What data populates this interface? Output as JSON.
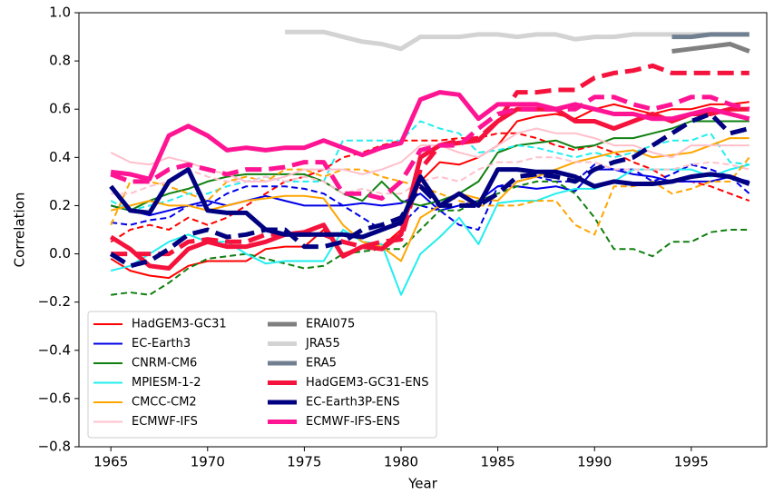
{
  "chart_data": {
    "type": "line",
    "xlabel": "Year",
    "ylabel": "Correlation",
    "x": [
      1965,
      1966,
      1967,
      1968,
      1969,
      1970,
      1971,
      1972,
      1973,
      1974,
      1975,
      1976,
      1977,
      1978,
      1979,
      1980,
      1981,
      1982,
      1983,
      1984,
      1985,
      1986,
      1987,
      1988,
      1989,
      1990,
      1991,
      1992,
      1993,
      1994,
      1995,
      1996,
      1997,
      1998
    ],
    "xlim": [
      1963.35,
      1998.9
    ],
    "xticks": [
      1965,
      1970,
      1975,
      1980,
      1985,
      1990,
      1995
    ],
    "ylim": [
      -0.8,
      1.0
    ],
    "yticks": [
      {
        "value": -0.8,
        "label": "−0.8"
      },
      {
        "value": -0.6,
        "label": "−0.6"
      },
      {
        "value": -0.4,
        "label": "−0.4"
      },
      {
        "value": -0.2,
        "label": "−0.2"
      },
      {
        "value": 0,
        "label": "0.0"
      },
      {
        "value": 0.2,
        "label": "0.2"
      },
      {
        "value": 0.4,
        "label": "0.4"
      },
      {
        "value": 0.6,
        "label": "0.6"
      },
      {
        "value": 0.8,
        "label": "0.8"
      },
      {
        "value": 1.0,
        "label": "1.0"
      }
    ],
    "grid": false,
    "legend": "lower left",
    "series": [
      {
        "name": "HadGEM3-GC31",
        "color": "#ff0000",
        "width": 2,
        "values": [
          -0.02,
          -0.07,
          -0.09,
          -0.1,
          -0.05,
          -0.03,
          -0.03,
          -0.03,
          0.02,
          0.03,
          0.03,
          0.1,
          0.0,
          0.03,
          0.03,
          0.1,
          0.3,
          0.38,
          0.37,
          0.4,
          0.45,
          0.55,
          0.57,
          0.58,
          0.56,
          0.6,
          0.62,
          0.6,
          0.58,
          0.6,
          0.6,
          0.62,
          0.62,
          0.63
        ],
        "dashed_values": [
          0.05,
          0.1,
          0.12,
          0.1,
          0.15,
          0.12,
          0.15,
          0.2,
          0.25,
          0.3,
          0.32,
          0.35,
          0.4,
          0.42,
          0.45,
          0.47,
          0.47,
          0.47,
          0.48,
          0.48,
          0.5,
          0.5,
          0.48,
          0.45,
          0.43,
          0.45,
          0.42,
          0.38,
          0.35,
          0.3,
          0.3,
          0.28,
          0.25,
          0.22
        ]
      },
      {
        "name": "EC-Earth3",
        "color": "#0000e6",
        "width": 2,
        "values": [
          0.2,
          0.18,
          0.16,
          0.18,
          0.2,
          0.22,
          0.2,
          0.22,
          0.24,
          0.22,
          0.2,
          0.2,
          0.2,
          0.21,
          0.2,
          0.21,
          0.25,
          0.18,
          0.2,
          0.22,
          0.28,
          0.28,
          0.27,
          0.28,
          0.26,
          0.35,
          0.35,
          0.33,
          0.32,
          0.3,
          0.3,
          0.3,
          0.32,
          0.3
        ],
        "dashed_values": [
          0.13,
          0.12,
          0.14,
          0.15,
          0.2,
          0.2,
          0.25,
          0.28,
          0.28,
          0.28,
          0.27,
          0.25,
          0.2,
          0.15,
          0.1,
          0.12,
          0.2,
          0.18,
          0.12,
          0.1,
          0.28,
          0.3,
          0.32,
          0.3,
          0.3,
          0.37,
          0.35,
          0.35,
          0.3,
          0.33,
          0.37,
          0.35,
          0.32,
          0.25
        ]
      },
      {
        "name": "CNRM-CM6",
        "color": "#108010",
        "width": 2,
        "values": [
          0.2,
          0.18,
          0.22,
          0.25,
          0.27,
          0.3,
          0.32,
          0.33,
          0.33,
          0.33,
          0.33,
          0.3,
          0.25,
          0.22,
          0.3,
          0.22,
          0.2,
          0.22,
          0.25,
          0.3,
          0.42,
          0.45,
          0.46,
          0.47,
          0.44,
          0.45,
          0.48,
          0.48,
          0.5,
          0.52,
          0.55,
          0.55,
          0.55,
          0.55
        ],
        "dashed_values": [
          -0.17,
          -0.16,
          -0.17,
          -0.12,
          -0.06,
          -0.02,
          -0.01,
          0.0,
          -0.02,
          -0.04,
          -0.06,
          -0.05,
          0.0,
          0.01,
          0.02,
          0.02,
          0.1,
          0.18,
          0.18,
          0.22,
          0.25,
          0.28,
          0.3,
          0.3,
          0.25,
          0.15,
          0.02,
          0.02,
          -0.01,
          0.05,
          0.05,
          0.09,
          0.1,
          0.1
        ]
      },
      {
        "name": "MPIESM-1-2",
        "color": "#22eeee",
        "width": 2,
        "values": [
          -0.07,
          -0.05,
          0.0,
          0.05,
          0.08,
          0.05,
          0.05,
          0.0,
          -0.04,
          -0.03,
          -0.03,
          -0.03,
          0.1,
          0.05,
          0.04,
          -0.17,
          0.0,
          0.07,
          0.15,
          0.04,
          0.21,
          0.22,
          0.22,
          0.25,
          0.27,
          0.27,
          0.3,
          0.35,
          0.35,
          0.35,
          0.35,
          0.32,
          0.35,
          0.37
        ],
        "dashed_values": [
          0.22,
          0.18,
          0.2,
          0.22,
          0.25,
          0.25,
          0.28,
          0.3,
          0.32,
          0.3,
          0.3,
          0.3,
          0.47,
          0.47,
          0.47,
          0.47,
          0.55,
          0.52,
          0.5,
          0.42,
          0.43,
          0.45,
          0.44,
          0.42,
          0.4,
          0.42,
          0.4,
          0.42,
          0.45,
          0.47,
          0.47,
          0.5,
          0.38,
          0.37
        ]
      },
      {
        "name": "CMCC-CM2",
        "color": "#ffa500",
        "width": 2,
        "values": [
          0.18,
          0.2,
          0.22,
          0.2,
          0.2,
          0.18,
          0.2,
          0.22,
          0.23,
          0.24,
          0.24,
          0.23,
          0.12,
          0.05,
          0.03,
          -0.03,
          0.15,
          0.2,
          0.25,
          0.23,
          0.22,
          0.3,
          0.32,
          0.35,
          0.38,
          0.4,
          0.42,
          0.43,
          0.4,
          0.41,
          0.42,
          0.45,
          0.48,
          0.48
        ],
        "dashed_values": [
          0.12,
          0.3,
          0.3,
          0.28,
          0.25,
          0.22,
          0.3,
          0.32,
          0.3,
          0.35,
          0.35,
          0.32,
          0.35,
          0.35,
          0.32,
          0.3,
          0.28,
          0.25,
          0.22,
          0.2,
          0.2,
          0.2,
          0.22,
          0.22,
          0.12,
          0.08,
          0.28,
          0.28,
          0.3,
          0.25,
          0.27,
          0.3,
          0.3,
          0.4
        ]
      },
      {
        "name": "ECMWF-IFS",
        "color": "#ffc0cb",
        "width": 2,
        "values": [
          0.42,
          0.38,
          0.37,
          0.4,
          0.38,
          0.35,
          0.33,
          0.3,
          0.3,
          0.32,
          0.35,
          0.35,
          0.35,
          0.33,
          0.35,
          0.38,
          0.45,
          0.45,
          0.42,
          0.4,
          0.45,
          0.5,
          0.52,
          0.5,
          0.5,
          0.48,
          0.45,
          0.45,
          0.42,
          0.4,
          0.45,
          0.45,
          0.45,
          0.45
        ],
        "dashed_values": [
          0.25,
          0.25,
          0.28,
          0.3,
          0.35,
          0.32,
          0.3,
          0.3,
          0.32,
          0.3,
          0.32,
          0.3,
          0.25,
          0.27,
          0.25,
          0.25,
          0.3,
          0.32,
          0.3,
          0.35,
          0.38,
          0.38,
          0.4,
          0.4,
          0.38,
          0.38,
          0.35,
          0.35,
          0.35,
          0.35,
          0.37,
          0.38,
          0.37,
          0.35
        ]
      },
      {
        "name": "ERAI075",
        "color": "#808080",
        "width": 5,
        "values": [
          null,
          null,
          null,
          null,
          null,
          null,
          null,
          null,
          null,
          null,
          null,
          null,
          null,
          null,
          null,
          null,
          null,
          null,
          null,
          null,
          null,
          null,
          null,
          null,
          null,
          null,
          null,
          null,
          null,
          0.84,
          0.85,
          0.86,
          0.87,
          0.84
        ]
      },
      {
        "name": "JRA55",
        "color": "#d3d3d3",
        "width": 5,
        "values": [
          null,
          null,
          null,
          null,
          null,
          null,
          null,
          null,
          null,
          0.92,
          0.92,
          0.92,
          0.9,
          0.88,
          0.87,
          0.85,
          0.9,
          0.9,
          0.9,
          0.91,
          0.91,
          0.9,
          0.91,
          0.91,
          0.89,
          0.9,
          0.9,
          0.91,
          0.91,
          0.91,
          0.91,
          0.91,
          0.91,
          0.91
        ]
      },
      {
        "name": "ERA5",
        "color": "#708090",
        "width": 5,
        "values": [
          null,
          null,
          null,
          null,
          null,
          null,
          null,
          null,
          null,
          null,
          null,
          null,
          null,
          null,
          null,
          null,
          null,
          null,
          null,
          null,
          null,
          null,
          null,
          null,
          null,
          null,
          null,
          null,
          null,
          0.9,
          0.9,
          0.91,
          0.91,
          0.91
        ]
      },
      {
        "name": "HadGEM3-GC31-ENS",
        "color": "#f5133d",
        "width": 5,
        "values": [
          0.07,
          0.02,
          -0.05,
          -0.06,
          0.02,
          0.05,
          0.03,
          0.03,
          0.05,
          0.08,
          0.09,
          0.12,
          -0.01,
          0.03,
          0.02,
          0.08,
          0.4,
          0.45,
          0.46,
          0.47,
          0.55,
          0.6,
          0.6,
          0.6,
          0.55,
          0.55,
          0.52,
          0.55,
          0.58,
          0.55,
          0.58,
          0.58,
          0.6,
          0.6
        ],
        "dashed_values": [
          0.0,
          0.0,
          0.0,
          0.0,
          0.05,
          0.06,
          0.05,
          0.05,
          0.08,
          0.08,
          0.08,
          0.08,
          0.05,
          0.03,
          0.05,
          0.06,
          0.35,
          0.45,
          0.47,
          0.48,
          0.55,
          0.67,
          0.67,
          0.68,
          0.68,
          0.73,
          0.75,
          0.76,
          0.78,
          0.75,
          0.75,
          0.75,
          0.75,
          0.75
        ]
      },
      {
        "name": "EC-Earth3P-ENS",
        "color": "#000080",
        "width": 5,
        "values": [
          0.28,
          0.18,
          0.17,
          0.3,
          0.35,
          0.18,
          0.17,
          0.17,
          0.1,
          0.08,
          0.08,
          0.08,
          0.08,
          0.07,
          0.1,
          0.13,
          0.32,
          0.2,
          0.25,
          0.2,
          0.35,
          0.35,
          0.34,
          0.34,
          0.32,
          0.28,
          0.3,
          0.29,
          0.29,
          0.3,
          0.32,
          0.33,
          0.32,
          0.29
        ],
        "dashed_values": [
          0.0,
          -0.05,
          -0.03,
          0.02,
          0.08,
          0.1,
          0.07,
          0.08,
          0.1,
          0.1,
          0.03,
          0.03,
          0.05,
          0.1,
          0.12,
          0.15,
          0.28,
          0.2,
          0.2,
          0.2,
          0.25,
          0.32,
          0.33,
          0.32,
          0.3,
          0.35,
          0.38,
          0.4,
          0.45,
          0.5,
          0.55,
          0.58,
          0.5,
          0.52
        ]
      },
      {
        "name": "ECMWF-IFS-ENS",
        "color": "#ff1493",
        "width": 5,
        "values": [
          0.34,
          0.33,
          0.31,
          0.49,
          0.53,
          0.49,
          0.43,
          0.44,
          0.43,
          0.44,
          0.44,
          0.47,
          0.44,
          0.41,
          0.44,
          0.46,
          0.64,
          0.67,
          0.66,
          0.56,
          0.62,
          0.62,
          0.62,
          0.6,
          0.62,
          0.6,
          0.58,
          0.58,
          0.56,
          0.56,
          0.58,
          0.6,
          0.58,
          0.56
        ],
        "dashed_values": [
          0.33,
          0.3,
          0.3,
          0.35,
          0.37,
          0.35,
          0.33,
          0.35,
          0.35,
          0.36,
          0.38,
          0.38,
          0.25,
          0.25,
          0.23,
          0.3,
          0.43,
          0.45,
          0.45,
          0.52,
          0.58,
          0.6,
          0.6,
          0.6,
          0.6,
          0.65,
          0.65,
          0.62,
          0.6,
          0.62,
          0.65,
          0.65,
          0.62,
          0.6
        ]
      }
    ]
  }
}
